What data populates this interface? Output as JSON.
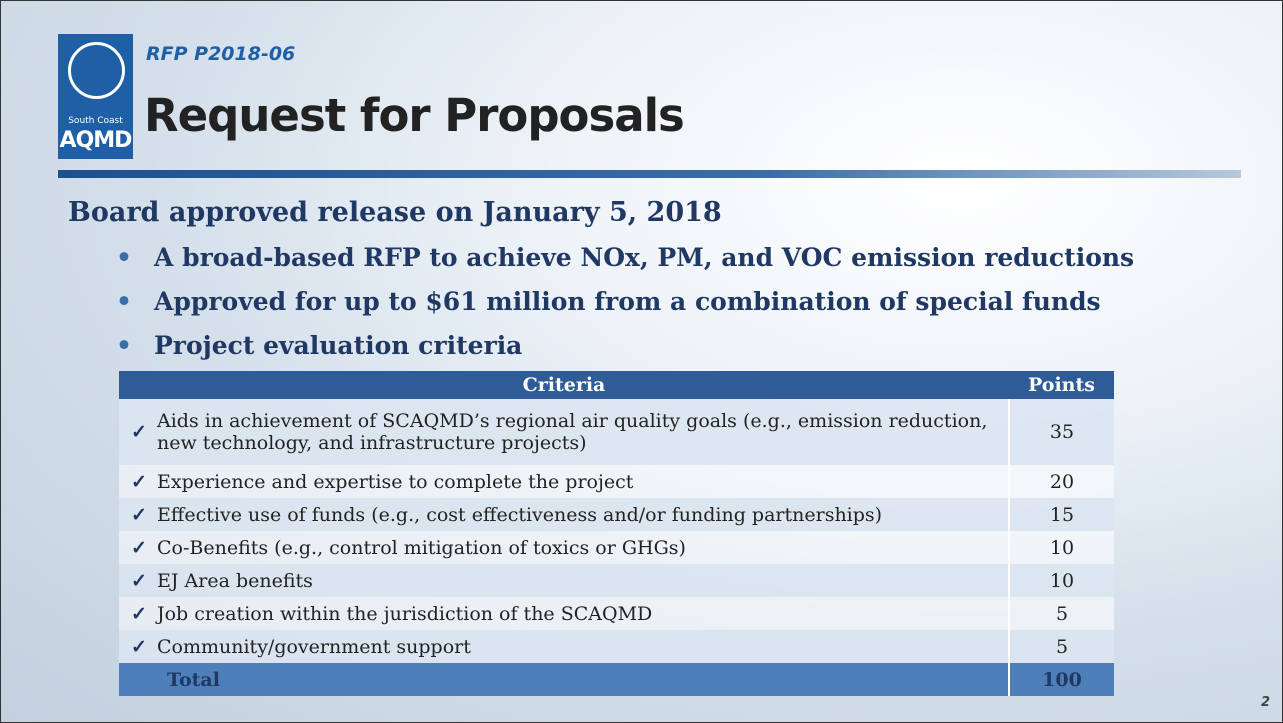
{
  "logo": {
    "line1": "South Coast",
    "line2": "AQMD"
  },
  "header": {
    "subtitle": "RFP P2018-06",
    "title": "Request for Proposals"
  },
  "heading": "Board approved release on January 5, 2018",
  "bullets": [
    "A broad-based RFP to achieve NOx, PM, and VOC emission reductions",
    "Approved for up to $61 million from a combination of special funds",
    "Project evaluation criteria"
  ],
  "table": {
    "columns": [
      "Criteria",
      "Points"
    ],
    "rows": [
      [
        "Aids in achievement of SCAQMD’s regional air quality goals (e.g., emission reduction, new technology, and infrastructure projects)",
        35
      ],
      [
        "Experience and expertise to complete the project",
        20
      ],
      [
        "Effective use of funds (e.g., cost effectiveness and/or funding partnerships)",
        15
      ],
      [
        "Co-Benefits (e.g., control mitigation of toxics or GHGs)",
        10
      ],
      [
        "EJ Area benefits",
        10
      ],
      [
        "Job creation within the jurisdiction of the SCAQMD",
        5
      ],
      [
        "Community/government support",
        5
      ]
    ],
    "total": [
      "Total",
      100
    ]
  },
  "page_number": 2
}
